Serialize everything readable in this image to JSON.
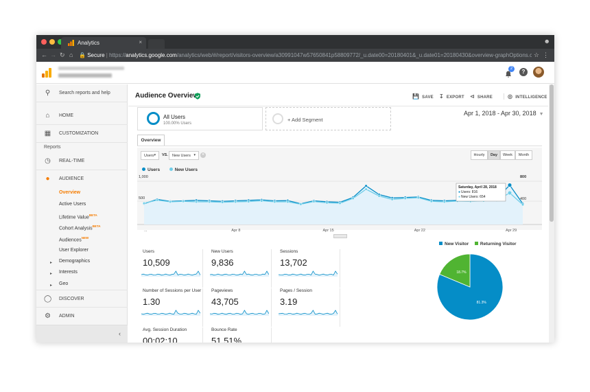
{
  "browser": {
    "tab_title": "Analytics",
    "tab_close": "×",
    "url_secure": "Secure",
    "url_scheme": "https://",
    "url_domain": "analytics.google.com",
    "url_path": "/analytics/web/#/report/visitors-overview/a30991047w57650841p58809772/_u.date00=20180401&_u.date01=20180430&overview-graphOptions.co..."
  },
  "header": {
    "notification_count": "2"
  },
  "sidebar": {
    "search": "Search reports and help",
    "home": "HOME",
    "customization": "CUSTOMIZATION",
    "reports_label": "Reports",
    "realtime": "REAL-TIME",
    "audience": "AUDIENCE",
    "audience_items": {
      "overview": "Overview",
      "active_users": "Active Users",
      "lifetime_value": "Lifetime Value",
      "lifetime_badge": "BETA",
      "cohort": "Cohort Analysis",
      "cohort_badge": "BETA",
      "audiences": "Audiences",
      "audiences_badge": "NEW",
      "user_explorer": "User Explorer",
      "demographics": "Demographics",
      "interests": "Interests",
      "geo": "Geo"
    },
    "discover": "DISCOVER",
    "admin": "ADMIN",
    "collapse": "‹"
  },
  "main": {
    "title": "Audience Overview",
    "actions": {
      "save": "SAVE",
      "export": "EXPORT",
      "share": "SHARE",
      "intelligence": "INTELLIGENCE"
    },
    "segment": {
      "name": "All Users",
      "percent": "100.00% Users",
      "add": "+ Add Segment"
    },
    "date_range": "Apr 1, 2018 - Apr 30, 2018",
    "tab_overview": "Overview",
    "metric_select": "Users",
    "vs": "VS.",
    "compare_select": "New Users",
    "granularity": {
      "hourly": "Hourly",
      "day": "Day",
      "week": "Week",
      "month": "Month",
      "selected": "Day"
    },
    "legend": {
      "users": "Users",
      "new_users": "New Users"
    }
  },
  "colors": {
    "users": "#058dc7",
    "new_users": "#6fcde8",
    "returning": "#50b432",
    "accent_orange": "#f57c00"
  },
  "chart_data": [
    {
      "type": "line",
      "series": [
        {
          "name": "Users",
          "values": [
            430,
            520,
            480,
            490,
            500,
            490,
            480,
            490,
            500,
            510,
            490,
            495,
            430,
            490,
            470,
            460,
            560,
            800,
            620,
            550,
            560,
            570,
            500,
            490,
            500,
            500,
            520,
            530,
            816,
            430
          ]
        },
        {
          "name": "New Users",
          "values": [
            440,
            505,
            470,
            480,
            470,
            470,
            460,
            470,
            475,
            490,
            470,
            470,
            420,
            475,
            450,
            440,
            540,
            730,
            590,
            520,
            540,
            555,
            480,
            470,
            485,
            480,
            490,
            500,
            654,
            410
          ]
        }
      ],
      "x_ticks": [
        "...",
        "Apr 8",
        "Apr 15",
        "Apr 22",
        "Apr 29"
      ],
      "y_ticks_left": [
        "1,000",
        "500"
      ],
      "y_ticks_right": [
        "800",
        "400"
      ],
      "tooltip": {
        "date": "Saturday, April 28, 2018",
        "users": "Users: 816",
        "new_users": "New Users: 654"
      }
    },
    {
      "type": "pie",
      "series": [
        {
          "name": "New Visitor",
          "value": 81.3,
          "label": "81.3%"
        },
        {
          "name": "Returning Visitor",
          "value": 18.7,
          "label": "18.7%"
        }
      ]
    }
  ],
  "metrics": [
    {
      "label": "Users",
      "value": "10,509"
    },
    {
      "label": "New Users",
      "value": "9,836"
    },
    {
      "label": "Sessions",
      "value": "13,702"
    },
    {
      "label": "Number of Sessions per User",
      "value": "1.30"
    },
    {
      "label": "Pageviews",
      "value": "43,705"
    },
    {
      "label": "Pages / Session",
      "value": "3.19"
    },
    {
      "label": "Avg. Session Duration",
      "value": "00:02:10"
    },
    {
      "label": "Bounce Rate",
      "value": "51.51%"
    }
  ]
}
